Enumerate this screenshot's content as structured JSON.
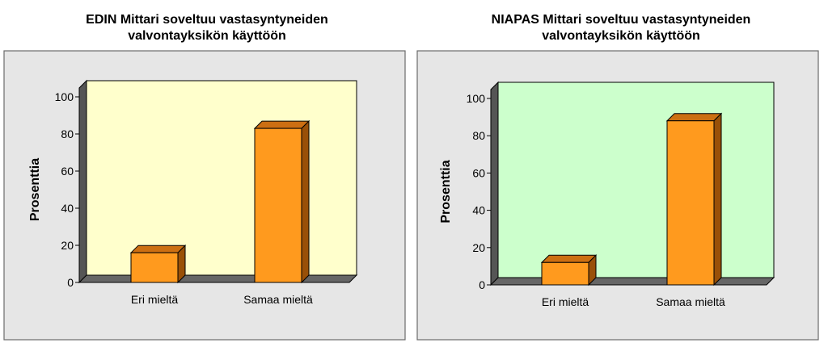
{
  "colors": {
    "panel_bg": "#e6e6e6",
    "panel_border": "#6b6b6b",
    "plot_bg_left": "#ffffcc",
    "plot_bg_right": "#ccffcc",
    "bar_front": "#ff9a1e",
    "bar_top": "#cc6f12",
    "bar_side": "#995008",
    "floor": "#666666",
    "axis": "#000000"
  },
  "chart_data": [
    {
      "type": "bar",
      "title_lines": [
        "EDIN Mittari soveltuu vastasyntyneiden",
        "valvontayksikön käyttöön"
      ],
      "categories": [
        "Eri mieltä",
        "Samaa mieltä"
      ],
      "values": [
        16,
        83
      ],
      "ylabel": "Prosenttia",
      "ylim": [
        0,
        100
      ],
      "yticks": [
        "0",
        "20",
        "40",
        "60",
        "80",
        "100"
      ],
      "grid": false,
      "legend": "none"
    },
    {
      "type": "bar",
      "title_lines": [
        "NIAPAS Mittari soveltuu vastasyntyneiden",
        "valvontayksikön käyttöön"
      ],
      "categories": [
        "Eri mieltä",
        "Samaa mieltä"
      ],
      "values": [
        12,
        88
      ],
      "ylabel": "Prosenttia",
      "ylim": [
        0,
        100
      ],
      "yticks": [
        "0",
        "20",
        "40",
        "60",
        "80",
        "100"
      ],
      "grid": false,
      "legend": "none"
    }
  ]
}
